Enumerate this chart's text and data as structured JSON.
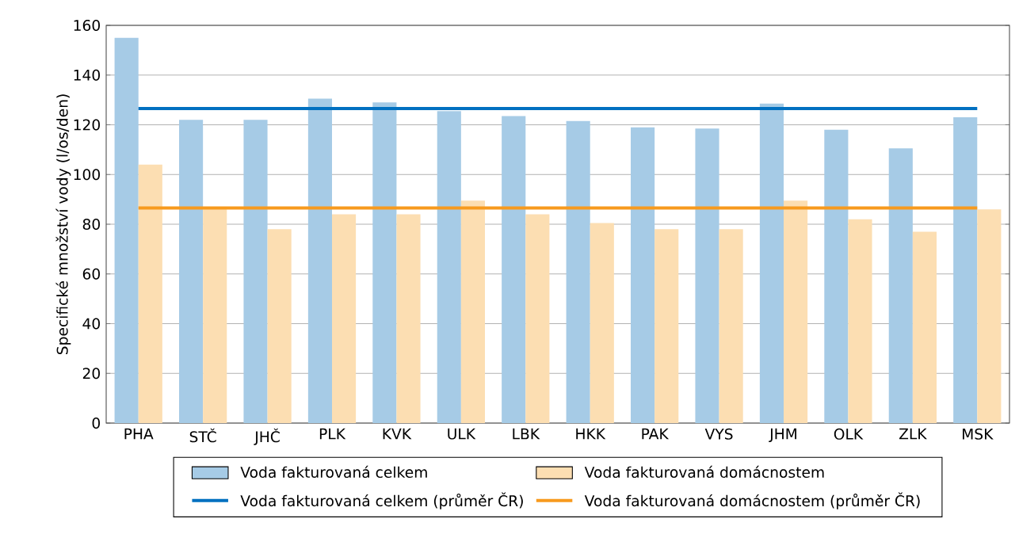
{
  "chart_data": {
    "type": "bar",
    "categories": [
      "PHA",
      "STČ",
      "JHČ",
      "PLK",
      "KVK",
      "ULK",
      "LBK",
      "HKK",
      "PAK",
      "VYS",
      "JHM",
      "OLK",
      "ZLK",
      "MSK"
    ],
    "ylabel": "Specifické množství vody (l/os/den)",
    "ylim": [
      0,
      160
    ],
    "yticks": [
      0,
      20,
      40,
      60,
      80,
      100,
      120,
      140,
      160
    ],
    "grid": "y",
    "legend": "bottom",
    "series": [
      {
        "name": "Voda fakturovaná celkem",
        "color": "#a6cbe6",
        "values": [
          155,
          122,
          122,
          130.5,
          129,
          125.5,
          123.5,
          121.5,
          119,
          118.5,
          128.5,
          118,
          110.5,
          123
        ]
      },
      {
        "name": "Voda fakturovaná domácnostem",
        "color": "#fcdeb2",
        "values": [
          104,
          87,
          78,
          84,
          84,
          89.5,
          84,
          80.5,
          78,
          78,
          89.5,
          82,
          77,
          86
        ]
      },
      {
        "name": "Voda fakturovaná celkem (průměr ČR)",
        "type": "line",
        "color": "#0070c0",
        "values": [
          126.5,
          126.5,
          126.5,
          126.5,
          126.5,
          126.5,
          126.5,
          126.5,
          126.5,
          126.5,
          126.5,
          126.5,
          126.5,
          126.5
        ]
      },
      {
        "name": "Voda fakturovaná domácnostem (průměr ČR)",
        "type": "line",
        "color": "#f79a1e",
        "values": [
          86.5,
          86.5,
          86.5,
          86.5,
          86.5,
          86.5,
          86.5,
          86.5,
          86.5,
          86.5,
          86.5,
          86.5,
          86.5,
          86.5
        ]
      }
    ]
  }
}
